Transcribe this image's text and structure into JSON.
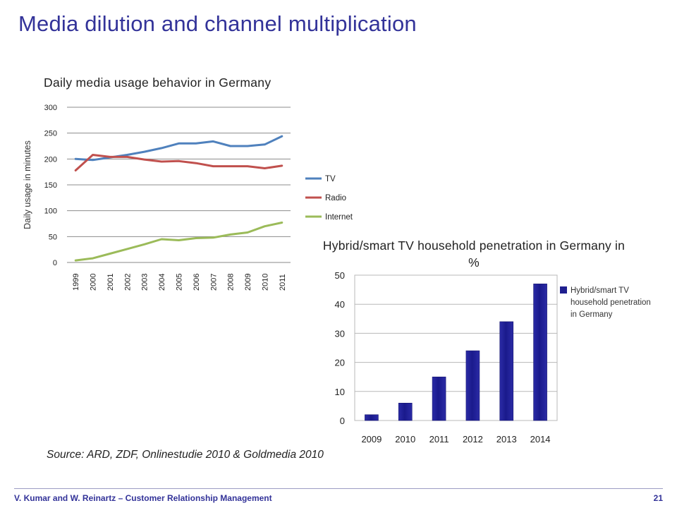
{
  "slide": {
    "title": "Media dilution and channel multiplication",
    "source": "Source: ARD, ZDF, Onlinestudie 2010 & Goldmedia 2010",
    "footer_left": "V. Kumar and W. Reinartz – Customer Relationship Management",
    "page_number": "21"
  },
  "chart_data": [
    {
      "type": "line",
      "title": "Daily media usage behavior in Germany",
      "xlabel": "",
      "ylabel": "Daily usage in minutes",
      "categories": [
        "1999",
        "2000",
        "2001",
        "2002",
        "2003",
        "2004",
        "2005",
        "2006",
        "2007",
        "2008",
        "2009",
        "2010",
        "2011"
      ],
      "ylim": [
        0,
        300
      ],
      "yticks": [
        0,
        50,
        100,
        150,
        200,
        250,
        300
      ],
      "grid": true,
      "legend_position": "right",
      "series": [
        {
          "name": "TV",
          "color": "#4f81bd",
          "values": [
            200,
            198,
            203,
            208,
            214,
            221,
            230,
            230,
            234,
            225,
            225,
            228,
            244
          ]
        },
        {
          "name": "Radio",
          "color": "#c0504d",
          "values": [
            178,
            208,
            204,
            204,
            199,
            195,
            196,
            192,
            186,
            186,
            186,
            182,
            187
          ]
        },
        {
          "name": "Internet",
          "color": "#9bbb59",
          "values": [
            4,
            8,
            17,
            26,
            35,
            45,
            43,
            47,
            48,
            54,
            58,
            70,
            77
          ]
        }
      ]
    },
    {
      "type": "bar",
      "title": "Hybrid/smart TV household penetration in Germany in %",
      "xlabel": "",
      "ylabel": "",
      "categories": [
        "2009",
        "2010",
        "2011",
        "2012",
        "2013",
        "2014"
      ],
      "ylim": [
        0,
        50
      ],
      "yticks": [
        0,
        10,
        20,
        30,
        40,
        50
      ],
      "grid": true,
      "legend_position": "right",
      "series": [
        {
          "name": "Hybrid/smart TV household penetration in Germany",
          "color": "#1f1f8f",
          "values": [
            2,
            6,
            15,
            24,
            34,
            47
          ]
        }
      ]
    }
  ]
}
